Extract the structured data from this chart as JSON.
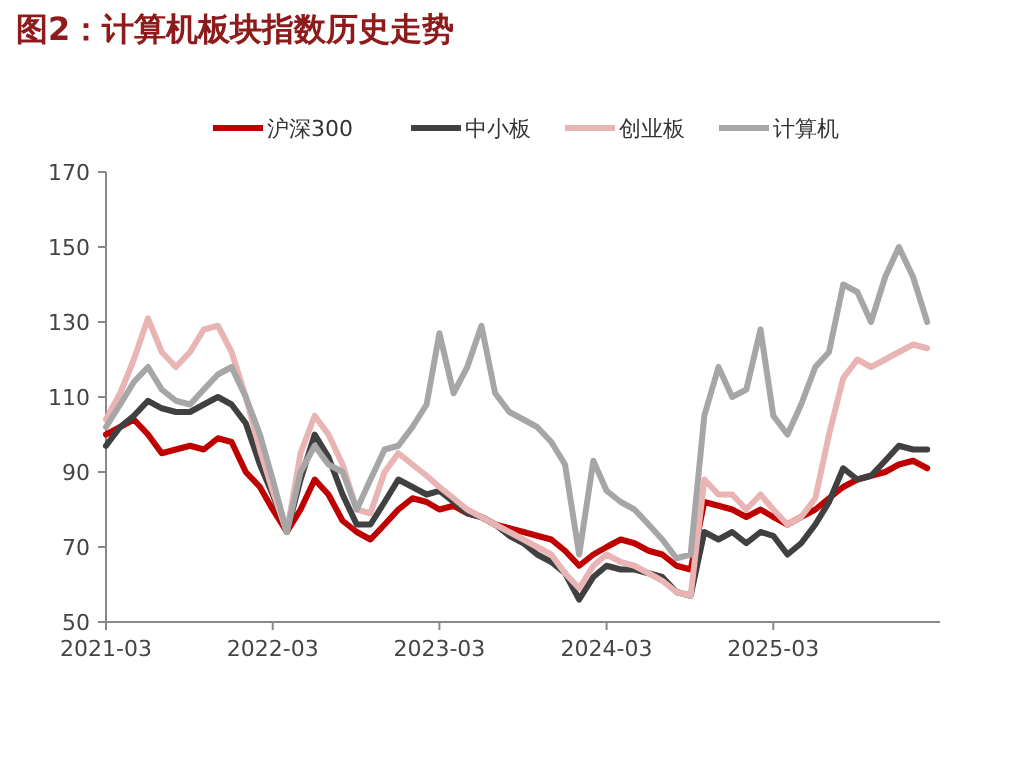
{
  "chart_data": {
    "type": "line",
    "title": "图2：计算机板块指数历史走势",
    "x": [
      "2021-03-01",
      "2021-04-01",
      "2021-05-01",
      "2021-06-01",
      "2021-07-01",
      "2021-08-01",
      "2021-09-01",
      "2021-10-01",
      "2021-11-01",
      "2021-12-01",
      "2022-01-01",
      "2022-02-01",
      "2022-03-01",
      "2022-04-01",
      "2022-05-01",
      "2022-06-01",
      "2022-07-01",
      "2022-08-01",
      "2022-09-01",
      "2022-10-01",
      "2022-11-01",
      "2022-12-01",
      "2023-01-01",
      "2023-02-01",
      "2023-03-01",
      "2023-04-01",
      "2023-05-01",
      "2023-06-01",
      "2023-07-01",
      "2023-08-01",
      "2023-09-01",
      "2023-10-01",
      "2023-11-01",
      "2023-12-01",
      "2024-01-01",
      "2024-02-01",
      "2024-03-01",
      "2024-04-01",
      "2024-05-01",
      "2024-06-01",
      "2024-07-01",
      "2024-08-01",
      "2024-09-01",
      "2024-10-01",
      "2024-11-01",
      "2024-12-01",
      "2025-01-01",
      "2025-02-01",
      "2025-03-01",
      "2025-04-01",
      "2025-05-01",
      "2025-06-01",
      "2025-07-01",
      "2025-08-01",
      "2025-09-01",
      "2025-10-01",
      "2025-11-01",
      "2025-12-01",
      "2026-01-01",
      "2026-02-01"
    ],
    "series": [
      {
        "name": "沪深300",
        "color": "#c00000",
        "values": [
          100,
          102,
          104,
          100,
          95,
          96,
          97,
          96,
          99,
          98,
          90,
          86,
          80,
          74,
          80,
          88,
          84,
          77,
          74,
          72,
          76,
          80,
          83,
          82,
          80,
          81,
          79,
          78,
          76,
          75,
          74,
          73,
          72,
          69,
          65,
          68,
          70,
          72,
          71,
          69,
          68,
          65,
          64,
          82,
          81,
          80,
          78,
          80,
          78,
          76,
          78,
          80,
          83,
          86,
          88,
          89,
          90,
          92,
          93,
          91
        ]
      },
      {
        "name": "中小板",
        "color": "#404040",
        "values": [
          97,
          102,
          105,
          109,
          107,
          106,
          106,
          108,
          110,
          108,
          103,
          92,
          84,
          74,
          88,
          100,
          94,
          84,
          76,
          76,
          82,
          88,
          86,
          84,
          85,
          82,
          79,
          78,
          76,
          73,
          71,
          68,
          66,
          63,
          56,
          62,
          65,
          64,
          64,
          63,
          62,
          58,
          57,
          74,
          72,
          74,
          71,
          74,
          73,
          68,
          71,
          76,
          82,
          91,
          88,
          89,
          93,
          97,
          96,
          96
        ]
      },
      {
        "name": "创业板",
        "color": "#e8b4b4",
        "values": [
          104,
          111,
          120,
          131,
          122,
          118,
          122,
          128,
          129,
          122,
          110,
          96,
          85,
          74,
          95,
          105,
          100,
          92,
          80,
          79,
          90,
          95,
          92,
          89,
          86,
          83,
          80,
          78,
          76,
          74,
          72,
          70,
          68,
          63,
          59,
          65,
          68,
          66,
          65,
          63,
          61,
          58,
          57,
          88,
          84,
          84,
          80,
          84,
          80,
          76,
          78,
          83,
          100,
          115,
          120,
          118,
          120,
          122,
          124,
          123
        ]
      },
      {
        "name": "计算机",
        "color": "#a6a6a6",
        "values": [
          102,
          108,
          114,
          118,
          112,
          109,
          108,
          112,
          116,
          118,
          110,
          100,
          88,
          74,
          90,
          97,
          92,
          90,
          80,
          88,
          96,
          97,
          102,
          108,
          127,
          111,
          118,
          129,
          111,
          106,
          104,
          102,
          98,
          92,
          68,
          93,
          85,
          82,
          80,
          76,
          72,
          67,
          68,
          105,
          118,
          110,
          112,
          128,
          105,
          100,
          108,
          118,
          122,
          140,
          138,
          130,
          142,
          150,
          142,
          130
        ]
      }
    ],
    "xlim": [
      "2021-03-01",
      "2026-03-01"
    ],
    "xticks": [
      {
        "value": "2021-03-01",
        "label": "2021-03"
      },
      {
        "value": "2022-03-01",
        "label": "2022-03"
      },
      {
        "value": "2023-03-01",
        "label": "2023-03"
      },
      {
        "value": "2024-03-01",
        "label": "2024-03"
      },
      {
        "value": "2025-03-01",
        "label": "2025-03"
      }
    ],
    "ylim": [
      50,
      170
    ],
    "yticks": [
      50,
      70,
      90,
      110,
      130,
      150,
      170
    ],
    "grid": false,
    "legend": "top",
    "marker": "none",
    "line_style": "solid"
  }
}
